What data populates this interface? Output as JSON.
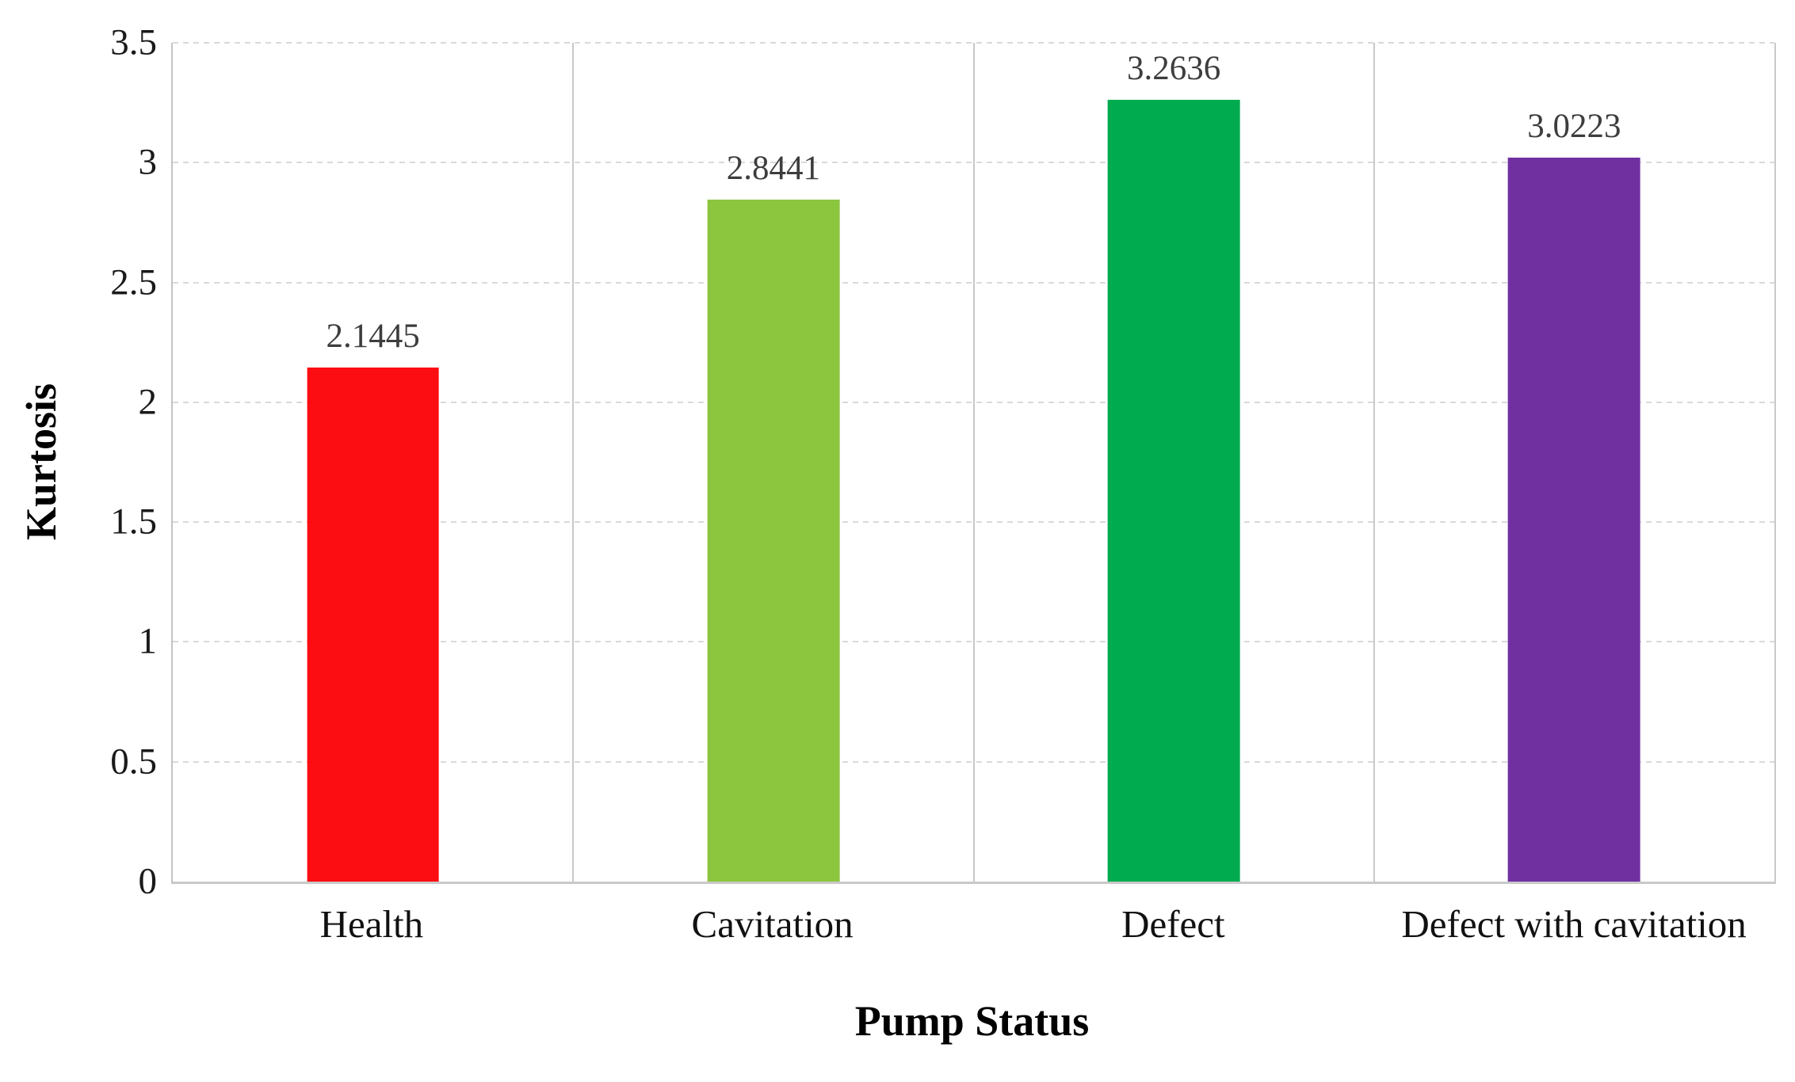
{
  "chart_data": {
    "type": "bar",
    "title": "",
    "categories": [
      "Health",
      "Cavitation",
      "Defect",
      "Defect with cavitation"
    ],
    "values": [
      2.1445,
      2.8441,
      3.2636,
      3.0223
    ],
    "value_labels": [
      "2.1445",
      "2.8441",
      "3.2636",
      "3.0223"
    ],
    "bar_colors": [
      "#fb0d12",
      "#8cc63f",
      "#00ab50",
      "#7030a0"
    ],
    "xlabel": "Pump Status",
    "ylabel": "Kurtosis",
    "ylim": [
      0,
      3.5
    ],
    "ytick_step": 0.5,
    "ytick_labels": [
      "0",
      "0.5",
      "1",
      "1.5",
      "2",
      "2.5",
      "3",
      "3.5"
    ],
    "grid": "horizontal-dashed",
    "legend": "none",
    "styles": {
      "grid_color": "#d9d9d9",
      "axis_color": "#c9c9c9",
      "tick_text_color": "#1a1a1a",
      "value_text_color": "#3d3d3d",
      "background": "#ffffff"
    }
  }
}
